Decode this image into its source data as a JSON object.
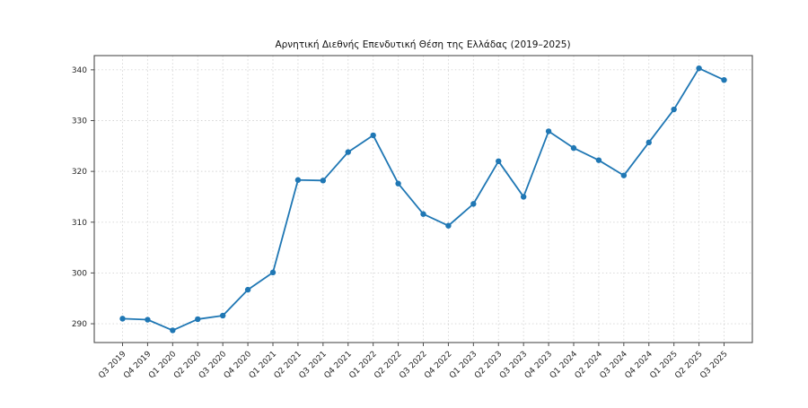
{
  "chart_data": {
    "type": "line",
    "title": "Αρνητική Διεθνής Επενδυτική Θέση της Ελλάδας (2019–2025)",
    "categories": [
      "Q3 2019",
      "Q4 2019",
      "Q1 2020",
      "Q2 2020",
      "Q3 2020",
      "Q4 2020",
      "Q1 2021",
      "Q2 2021",
      "Q3 2021",
      "Q4 2021",
      "Q1 2022",
      "Q2 2022",
      "Q3 2022",
      "Q4 2022",
      "Q1 2023",
      "Q2 2023",
      "Q3 2023",
      "Q4 2023",
      "Q1 2024",
      "Q2 2024",
      "Q3 2024",
      "Q4 2024",
      "Q1 2025",
      "Q2 2025",
      "Q3 2025"
    ],
    "values": [
      291.0,
      290.8,
      288.7,
      290.9,
      291.6,
      296.7,
      300.1,
      318.3,
      318.2,
      323.8,
      327.1,
      317.6,
      311.6,
      309.3,
      313.6,
      322.0,
      315.0,
      327.9,
      324.6,
      322.2,
      319.2,
      325.7,
      332.2,
      340.3,
      338.0
    ],
    "xlabel": "",
    "ylabel": "",
    "ylim": [
      286.3,
      342.8
    ],
    "yticks": [
      290,
      300,
      310,
      320,
      330,
      340
    ],
    "grid": true,
    "grid_style": "dotted",
    "legend": "none",
    "x_tick_rotation": -45,
    "colors": {
      "line": "#1f77b4",
      "marker": "#1f77b4",
      "frame": "#4d4d4d",
      "grid": "#d4d4d4",
      "tick_label": "#262626",
      "background": "#ffffff"
    }
  }
}
